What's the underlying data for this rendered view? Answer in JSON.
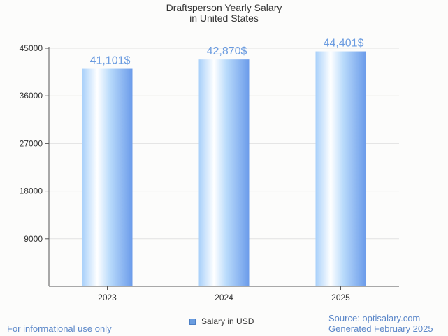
{
  "chart_data": {
    "type": "bar",
    "title": "Draftsperson Yearly Salary",
    "subtitle": "in United States",
    "categories": [
      "2023",
      "2024",
      "2025"
    ],
    "series": [
      {
        "name": "Salary in USD",
        "values": [
          41101,
          42870,
          44401
        ],
        "data_labels": [
          "41,101$",
          "42,870$",
          "44,401$"
        ]
      }
    ],
    "xlabel": "",
    "ylabel": "",
    "ylim": [
      0,
      45000
    ],
    "yticks": [
      "9000",
      "18000",
      "27000",
      "36000",
      "45000"
    ],
    "grid": true,
    "legend": "bottom-center"
  },
  "colors": {
    "bar_light": "#ffffff",
    "bar_mid": "#b8dcfb",
    "bar_dark": "#6b9bea",
    "label": "#6a9be0",
    "grid": "#e2e2e2",
    "axis": "#555555"
  },
  "footer": {
    "disclaimer": "For informational use only",
    "source": "Source: optisalary.com",
    "generated": "Generated February 2025"
  }
}
